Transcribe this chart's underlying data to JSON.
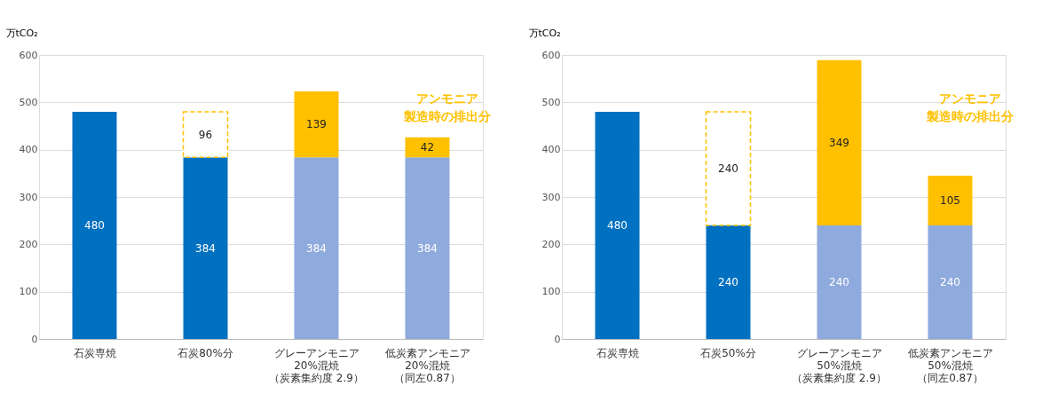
{
  "chart_data": [
    {
      "type": "bar",
      "stacked": true,
      "ylabel": "万tCO₂",
      "ylim": [
        0,
        600
      ],
      "yticks": [
        0,
        100,
        200,
        300,
        400,
        500,
        600
      ],
      "grid": "y",
      "data_labels": true,
      "categories": [
        "石炭専焼",
        "石炭80%分",
        "グレーアンモニア20%混焼（炭素集約度 2.9）",
        "低炭素アンモニア20%混焼（同左0.87）"
      ],
      "series": [
        {
          "type": "bar",
          "colors": [
            "#0070c0",
            "#0070c0",
            "#8faadc",
            "#8faadc"
          ],
          "values": [
            480,
            384,
            384,
            384
          ]
        },
        {
          "type": "bar",
          "line_style": "dashed",
          "color": "#ffc000",
          "values": [
            null,
            96,
            null,
            null
          ]
        },
        {
          "type": "bar",
          "color": "#ffc000",
          "values": [
            null,
            null,
            139,
            42
          ]
        }
      ],
      "annotations": [
        "アンモニア製造時の排出分"
      ]
    },
    {
      "type": "bar",
      "stacked": true,
      "ylabel": "万tCO₂",
      "ylim": [
        0,
        600
      ],
      "yticks": [
        0,
        100,
        200,
        300,
        400,
        500,
        600
      ],
      "grid": "y",
      "data_labels": true,
      "categories": [
        "石炭専焼",
        "石炭50%分",
        "グレーアンモニア50%混焼（炭素集約度 2.9）",
        "低炭素アンモニア50%混焼（同左0.87）"
      ],
      "series": [
        {
          "type": "bar",
          "colors": [
            "#0070c0",
            "#0070c0",
            "#8faadc",
            "#8faadc"
          ],
          "values": [
            480,
            240,
            240,
            240
          ]
        },
        {
          "type": "bar",
          "line_style": "dashed",
          "color": "#ffc000",
          "values": [
            null,
            240,
            null,
            null
          ]
        },
        {
          "type": "bar",
          "color": "#ffc000",
          "values": [
            null,
            null,
            349,
            105
          ]
        }
      ],
      "annotations": [
        "アンモニア製造時の排出分"
      ]
    }
  ]
}
